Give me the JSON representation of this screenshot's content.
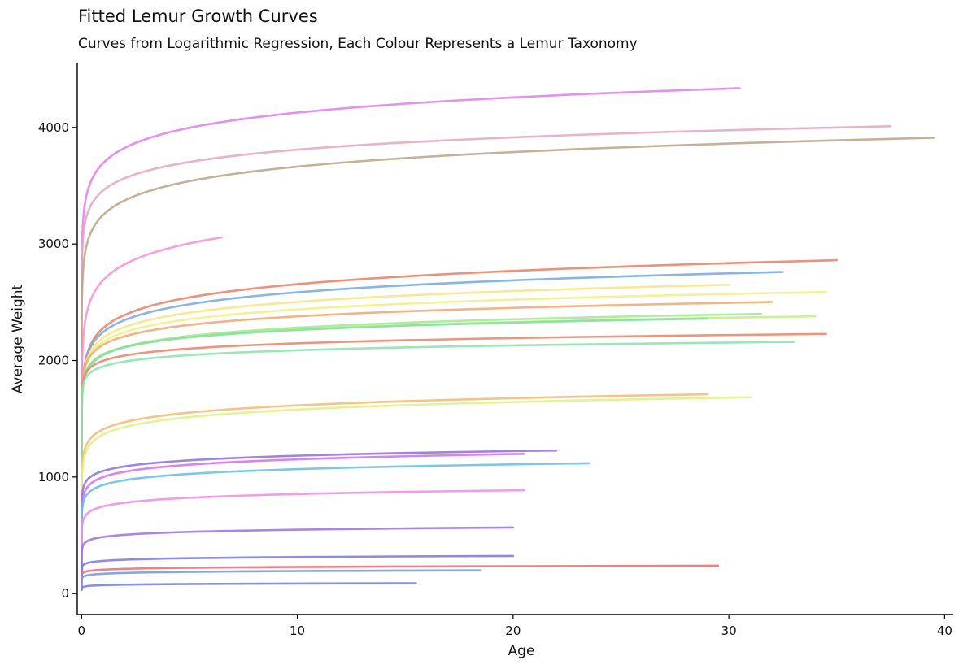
{
  "chart_data": {
    "type": "line",
    "title": "Fitted Lemur Growth Curves",
    "subtitle": "Curves from Logarithmic Regression, Each Colour Represents a Lemur Taxonomy",
    "xlabel": "Age",
    "ylabel": "Average Weight",
    "xlim": [
      -0.2,
      40.4
    ],
    "ylim": [
      -180,
      4550
    ],
    "xticks": [
      0,
      10,
      20,
      30,
      40
    ],
    "yticks": [
      0,
      1000,
      2000,
      3000,
      4000
    ],
    "grid": false,
    "legend": "none",
    "curve_model": "y = a + b * ln(x)",
    "series": [
      {
        "color": "#E37BED",
        "x_max": 30.5,
        "a": 3695,
        "b": 188,
        "y_min": 600
      },
      {
        "color": "#E9A3BF",
        "x_max": 37.5,
        "a": 3460,
        "b": 152,
        "y_min": 600
      },
      {
        "color": "#B8A586",
        "x_max": 39.5,
        "a": 3250,
        "b": 180,
        "y_min": 560
      },
      {
        "color": "#F98ED2",
        "x_max": 6.5,
        "a": 2690,
        "b": 196,
        "y_min": 600
      },
      {
        "color": "#EE7B62",
        "x_max": 35.0,
        "a": 2278,
        "b": 164,
        "y_min": 300
      },
      {
        "color": "#6FA8E8",
        "x_max": 32.5,
        "a": 2245,
        "b": 148,
        "y_min": 300
      },
      {
        "color": "#F9E47A",
        "x_max": 30.0,
        "a": 2195,
        "b": 134,
        "y_min": 300
      },
      {
        "color": "#F1F07A",
        "x_max": 34.5,
        "a": 2160,
        "b": 121,
        "y_min": 300
      },
      {
        "color": "#F3A66B",
        "x_max": 32.0,
        "a": 2135,
        "b": 106,
        "y_min": 300
      },
      {
        "color": "#C3F07A",
        "x_max": 34.0,
        "a": 2055,
        "b": 92,
        "y_min": 300
      },
      {
        "color": "#9FEA8F",
        "x_max": 31.5,
        "a": 2045,
        "b": 103,
        "y_min": 300
      },
      {
        "color": "#7FE0A1",
        "x_max": 29.0,
        "a": 2050,
        "b": 92,
        "y_min": 300
      },
      {
        "color": "#EE8060",
        "x_max": 34.5,
        "a": 1998,
        "b": 65,
        "y_min": 300
      },
      {
        "color": "#82E4AA",
        "x_max": 33.0,
        "a": 1950,
        "b": 60,
        "y_min": 300
      },
      {
        "color": "#F7B86A",
        "x_max": 29.0,
        "a": 1410,
        "b": 89,
        "y_min": 150
      },
      {
        "color": "#E1F07D",
        "x_max": 31.0,
        "a": 1365,
        "b": 93,
        "y_min": 150
      },
      {
        "color": "#8E6CE3",
        "x_max": 22.0,
        "a": 1052,
        "b": 57,
        "y_min": 100
      },
      {
        "color": "#CF6FEE",
        "x_max": 20.5,
        "a": 1000,
        "b": 66,
        "y_min": 100
      },
      {
        "color": "#62BDE9",
        "x_max": 23.5,
        "a": 932,
        "b": 59,
        "y_min": 100
      },
      {
        "color": "#F587E8",
        "x_max": 20.5,
        "a": 748,
        "b": 46,
        "y_min": 100
      },
      {
        "color": "#9A6EE6",
        "x_max": 20.0,
        "a": 486,
        "b": 27,
        "y_min": 50
      },
      {
        "color": "#7B74E5",
        "x_max": 20.0,
        "a": 281,
        "b": 14,
        "y_min": 50
      },
      {
        "color": "#EE6B6B",
        "x_max": 29.5,
        "a": 205,
        "b": 10,
        "y_min": 40
      },
      {
        "color": "#6E95E8",
        "x_max": 18.5,
        "a": 170,
        "b": 10,
        "y_min": 40
      },
      {
        "color": "#707CE6",
        "x_max": 15.5,
        "a": 72,
        "b": 6,
        "y_min": 30
      }
    ]
  }
}
